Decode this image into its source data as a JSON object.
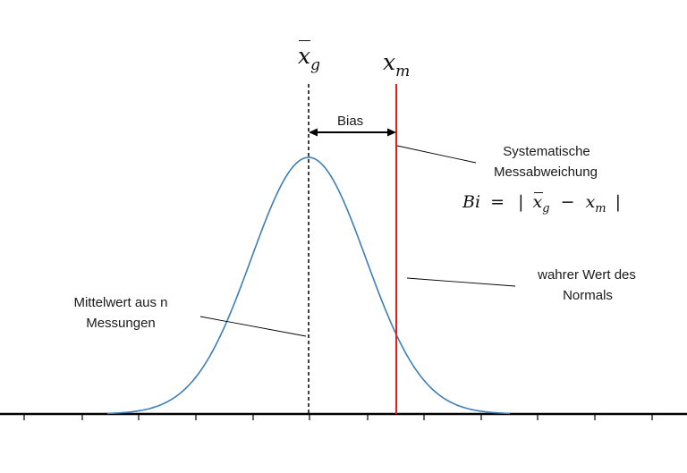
{
  "symbols": {
    "mean_base": "x",
    "mean_sub": "g",
    "true_base": "x",
    "true_sub": "m"
  },
  "bias_label": "Bias",
  "systematic": {
    "line1": "Systematische",
    "line2": "Messabweichung"
  },
  "formula": {
    "lhs": "Bi",
    "equals": "=",
    "bar_open": "|",
    "x1": "x",
    "sub1": "g",
    "minus": "−",
    "x2": "x",
    "sub2": "m",
    "bar_close": "|"
  },
  "true_value": {
    "line1": "wahrer Wert des",
    "line2": "Normals"
  },
  "mean_label": {
    "line1": "Mittelwert aus n",
    "line2": "Messungen"
  },
  "colors": {
    "curve": "#3d7eb4",
    "true_line": "#e0201c",
    "axis": "#000000",
    "text": "#1a1a1a"
  }
}
